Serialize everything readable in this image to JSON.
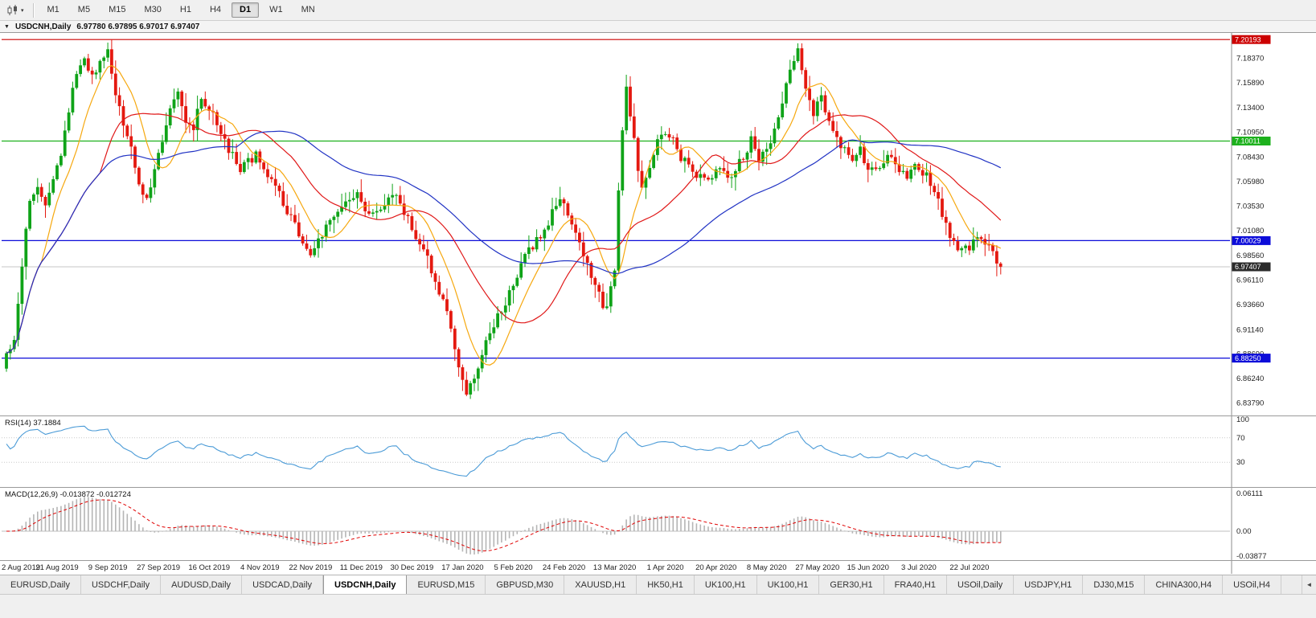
{
  "icons": {
    "chart_menu": "▼",
    "dropdown": "▾",
    "tab_scroll": "◄"
  },
  "toolbar": {
    "timeframes": [
      "M1",
      "M5",
      "M15",
      "M30",
      "H1",
      "H4",
      "D1",
      "W1",
      "MN"
    ],
    "active_timeframe": "D1"
  },
  "chart_title": {
    "symbol": "USDCNH,Daily",
    "ohlc": "6.97780 6.97895 6.97017 6.97407"
  },
  "chart_data": {
    "type": "candlestick",
    "symbol": "USDCNH",
    "timeframe": "Daily",
    "open": "6.97780",
    "high": "6.97895",
    "low": "6.97017",
    "close": "6.97407",
    "close_value": 6.97407,
    "n_candles": 256,
    "colors": {
      "up": "#0fa318",
      "down": "#e41910"
    },
    "price_axis": {
      "max": 7.2085,
      "min": 6.825,
      "labels": [
        "7.18370",
        "7.15890",
        "7.13400",
        "7.10950",
        "7.08430",
        "7.05980",
        "7.03530",
        "7.01080",
        "6.98560",
        "6.96110",
        "6.93660",
        "6.91140",
        "6.88690",
        "6.86240",
        "6.83790"
      ]
    },
    "levels": [
      {
        "value": 7.20193,
        "label": "7.20193",
        "color": "#cc0000"
      },
      {
        "value": 7.10011,
        "label": "7.10011",
        "color": "#1db11d"
      },
      {
        "value": 7.00029,
        "label": "7.00029",
        "color": "#0c0cd9"
      },
      {
        "value": 6.8825,
        "label": "6.88250",
        "color": "#0c0cd9"
      }
    ],
    "current_price": {
      "value": 6.97407,
      "label": "6.97407",
      "color": "#2b2b2b"
    },
    "moving_averages": [
      {
        "period": 10,
        "color": "#f6a80f"
      },
      {
        "period": 25,
        "color": "#e01818"
      },
      {
        "period": 60,
        "color": "#2133c4"
      }
    ],
    "price_anchors": [
      [
        0,
        6.883
      ],
      [
        2,
        6.9
      ],
      [
        4,
        6.975
      ],
      [
        6,
        7.045
      ],
      [
        8,
        7.055
      ],
      [
        10,
        7.04
      ],
      [
        12,
        7.06
      ],
      [
        14,
        7.09
      ],
      [
        16,
        7.13
      ],
      [
        18,
        7.17
      ],
      [
        20,
        7.185
      ],
      [
        22,
        7.165
      ],
      [
        24,
        7.18
      ],
      [
        26,
        7.19
      ],
      [
        28,
        7.15
      ],
      [
        30,
        7.12
      ],
      [
        32,
        7.09
      ],
      [
        34,
        7.055
      ],
      [
        36,
        7.045
      ],
      [
        38,
        7.07
      ],
      [
        40,
        7.1
      ],
      [
        42,
        7.13
      ],
      [
        44,
        7.145
      ],
      [
        46,
        7.12
      ],
      [
        48,
        7.115
      ],
      [
        50,
        7.14
      ],
      [
        52,
        7.135
      ],
      [
        54,
        7.12
      ],
      [
        56,
        7.1
      ],
      [
        58,
        7.085
      ],
      [
        60,
        7.07
      ],
      [
        62,
        7.08
      ],
      [
        64,
        7.085
      ],
      [
        66,
        7.07
      ],
      [
        68,
        7.06
      ],
      [
        70,
        7.045
      ],
      [
        72,
        7.03
      ],
      [
        74,
        7.015
      ],
      [
        76,
        7.0
      ],
      [
        78,
        6.99
      ],
      [
        80,
        7.0
      ],
      [
        82,
        7.015
      ],
      [
        84,
        7.025
      ],
      [
        86,
        7.03
      ],
      [
        88,
        7.04
      ],
      [
        90,
        7.045
      ],
      [
        92,
        7.03
      ],
      [
        94,
        7.025
      ],
      [
        96,
        7.035
      ],
      [
        98,
        7.04
      ],
      [
        100,
        7.045
      ],
      [
        102,
        7.03
      ],
      [
        104,
        7.01
      ],
      [
        106,
        7.0
      ],
      [
        108,
        6.985
      ],
      [
        110,
        6.96
      ],
      [
        112,
        6.94
      ],
      [
        114,
        6.915
      ],
      [
        116,
        6.875
      ],
      [
        118,
        6.85
      ],
      [
        120,
        6.86
      ],
      [
        122,
        6.89
      ],
      [
        124,
        6.905
      ],
      [
        126,
        6.925
      ],
      [
        128,
        6.94
      ],
      [
        130,
        6.955
      ],
      [
        132,
        6.975
      ],
      [
        134,
        6.99
      ],
      [
        136,
        7.0
      ],
      [
        138,
        7.01
      ],
      [
        140,
        7.03
      ],
      [
        142,
        7.045
      ],
      [
        144,
        7.025
      ],
      [
        146,
        7.005
      ],
      [
        148,
        6.985
      ],
      [
        150,
        6.965
      ],
      [
        152,
        6.945
      ],
      [
        154,
        6.93
      ],
      [
        156,
        6.97
      ],
      [
        157,
        7.05
      ],
      [
        158,
        7.11
      ],
      [
        159,
        7.15
      ],
      [
        161,
        7.1
      ],
      [
        163,
        7.05
      ],
      [
        165,
        7.07
      ],
      [
        167,
        7.1
      ],
      [
        169,
        7.11
      ],
      [
        171,
        7.1
      ],
      [
        173,
        7.085
      ],
      [
        175,
        7.075
      ],
      [
        177,
        7.065
      ],
      [
        179,
        7.06
      ],
      [
        181,
        7.065
      ],
      [
        183,
        7.075
      ],
      [
        185,
        7.065
      ],
      [
        187,
        7.07
      ],
      [
        189,
        7.085
      ],
      [
        191,
        7.1
      ],
      [
        193,
        7.08
      ],
      [
        195,
        7.09
      ],
      [
        197,
        7.11
      ],
      [
        199,
        7.14
      ],
      [
        201,
        7.17
      ],
      [
        203,
        7.19
      ],
      [
        205,
        7.155
      ],
      [
        207,
        7.13
      ],
      [
        209,
        7.145
      ],
      [
        211,
        7.12
      ],
      [
        213,
        7.1
      ],
      [
        215,
        7.095
      ],
      [
        217,
        7.085
      ],
      [
        219,
        7.09
      ],
      [
        221,
        7.075
      ],
      [
        223,
        7.07
      ],
      [
        225,
        7.08
      ],
      [
        227,
        7.085
      ],
      [
        229,
        7.07
      ],
      [
        231,
        7.065
      ],
      [
        233,
        7.075
      ],
      [
        235,
        7.07
      ],
      [
        237,
        7.06
      ],
      [
        239,
        7.04
      ],
      [
        241,
        7.015
      ],
      [
        243,
        7.0
      ],
      [
        245,
        6.99
      ],
      [
        247,
        6.995
      ],
      [
        249,
        7.005
      ],
      [
        251,
        7.0
      ],
      [
        253,
        6.99
      ],
      [
        255,
        6.974
      ]
    ],
    "time_labels": [
      {
        "i": 0,
        "t": "2 Aug 2019"
      },
      {
        "i": 13,
        "t": "21 Aug 2019"
      },
      {
        "i": 26,
        "t": "9 Sep 2019"
      },
      {
        "i": 39,
        "t": "27 Sep 2019"
      },
      {
        "i": 52,
        "t": "16 Oct 2019"
      },
      {
        "i": 65,
        "t": "4 Nov 2019"
      },
      {
        "i": 78,
        "t": "22 Nov 2019"
      },
      {
        "i": 91,
        "t": "11 Dec 2019"
      },
      {
        "i": 104,
        "t": "30 Dec 2019"
      },
      {
        "i": 117,
        "t": "17 Jan 2020"
      },
      {
        "i": 130,
        "t": "5 Feb 2020"
      },
      {
        "i": 143,
        "t": "24 Feb 2020"
      },
      {
        "i": 156,
        "t": "13 Mar 2020"
      },
      {
        "i": 169,
        "t": "1 Apr 2020"
      },
      {
        "i": 182,
        "t": "20 Apr 2020"
      },
      {
        "i": 195,
        "t": "8 May 2020"
      },
      {
        "i": 208,
        "t": "27 May 2020"
      },
      {
        "i": 221,
        "t": "15 Jun 2020"
      },
      {
        "i": 234,
        "t": "3 Jul 2020"
      },
      {
        "i": 247,
        "t": "22 Jul 2020"
      }
    ]
  },
  "rsi": {
    "title": "RSI(14) 37.1884",
    "period": 14,
    "value": 37.1884,
    "levels": [
      100,
      70,
      30
    ],
    "line_color": "#4b9bd7"
  },
  "macd": {
    "title": "MACD(12,26,9) -0.013872 -0.012724",
    "macd_value": -0.013872,
    "signal_value": -0.012724,
    "axis_labels": [
      "0.06111",
      "0.00",
      "-0.03877"
    ]
  },
  "tabs": {
    "active": "USDCNH,Daily",
    "items": [
      "EURUSD,Daily",
      "USDCHF,Daily",
      "AUDUSD,Daily",
      "USDCAD,Daily",
      "USDCNH,Daily",
      "EURUSD,M15",
      "GBPUSD,M30",
      "XAUUSD,H1",
      "HK50,H1",
      "UK100,H1",
      "UK100,H1",
      "GER30,H1",
      "FRA40,H1",
      "USOil,Daily",
      "USDJPY,H1",
      "DJ30,M15",
      "CHINA300,H4",
      "USOil,H4"
    ]
  }
}
